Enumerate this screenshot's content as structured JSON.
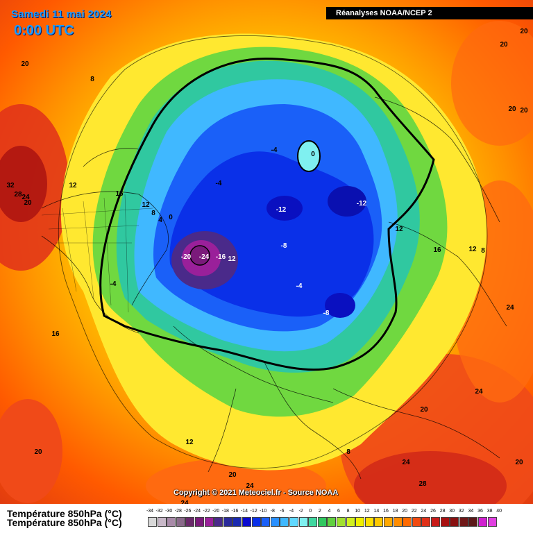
{
  "header": {
    "date": "Samedi 11 mai 2024",
    "time": "0:00 UTC",
    "source": "Réanalyses NOAA/NCEP 2"
  },
  "copyright": "Copyright © 2021 Meteociel.fr - Source NOAA",
  "legend": {
    "title": "Température 850hPa (°C)",
    "ticks": [
      "-34",
      "-32",
      "-30",
      "-28",
      "-26",
      "-24",
      "-22",
      "-20",
      "-18",
      "-16",
      "-14",
      "-12",
      "-10",
      "-8",
      "-6",
      "-4",
      "-2",
      "0",
      "2",
      "4",
      "6",
      "8",
      "10",
      "12",
      "14",
      "16",
      "18",
      "20",
      "22",
      "24",
      "26",
      "28",
      "30",
      "32",
      "34",
      "36",
      "38",
      "40"
    ],
    "colors": [
      "#d8d8d8",
      "#c8b8c8",
      "#a88aa8",
      "#8a6a8a",
      "#6a2a6a",
      "#7a1a7a",
      "#9a209a",
      "#4a2a8a",
      "#2a2a9a",
      "#1a2ab0",
      "#0a0acf",
      "#0a30e8",
      "#1a60f8",
      "#2a90ff",
      "#40b8ff",
      "#60d8ff",
      "#7ff0f0",
      "#40d8a0",
      "#30c860",
      "#60d040",
      "#a0e030",
      "#d0f020",
      "#f0f000",
      "#ffe000",
      "#ffc800",
      "#ffa800",
      "#ff8c00",
      "#ff6a00",
      "#f04a10",
      "#e03018",
      "#c81a18",
      "#a81010",
      "#881010",
      "#701818",
      "#5a1818",
      "#d020d0",
      "#e040e0"
    ]
  },
  "map_labels": [
    {
      "text": "20"
    },
    {
      "text": "8"
    },
    {
      "text": "20"
    },
    {
      "text": "20"
    },
    {
      "text": "20"
    },
    {
      "text": "20"
    },
    {
      "text": "32"
    },
    {
      "text": "28"
    },
    {
      "text": "24"
    },
    {
      "text": "20"
    },
    {
      "text": "12"
    },
    {
      "text": "16"
    },
    {
      "text": "12"
    },
    {
      "text": "8"
    },
    {
      "text": "4"
    },
    {
      "text": "0"
    },
    {
      "text": "-4"
    },
    {
      "text": "-4"
    },
    {
      "text": "0"
    },
    {
      "text": "-12"
    },
    {
      "text": "-12"
    },
    {
      "text": "-8"
    },
    {
      "text": "-20"
    },
    {
      "text": "-24"
    },
    {
      "text": "-16"
    },
    {
      "text": "12"
    },
    {
      "text": "-4"
    },
    {
      "text": "-8"
    },
    {
      "text": "12"
    },
    {
      "text": "16"
    },
    {
      "text": "12"
    },
    {
      "text": "8"
    },
    {
      "text": "-4"
    },
    {
      "text": "16"
    },
    {
      "text": "24"
    },
    {
      "text": "24"
    },
    {
      "text": "20"
    },
    {
      "text": "12"
    },
    {
      "text": "20"
    },
    {
      "text": "8"
    },
    {
      "text": "24"
    },
    {
      "text": "28"
    },
    {
      "text": "20"
    },
    {
      "text": "20"
    },
    {
      "text": "24"
    },
    {
      "text": "24"
    }
  ]
}
